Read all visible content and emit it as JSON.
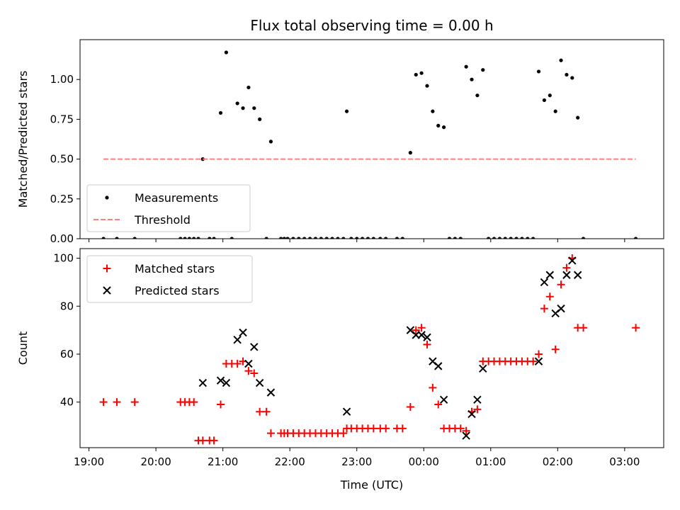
{
  "chart_data": [
    {
      "type": "scatter",
      "title": "Flux total observing time = 0.00 h",
      "xlabel": "",
      "ylabel": "Matched/Predicted stars",
      "xlim": [
        "18:52",
        "03:35"
      ],
      "ylim": [
        0.0,
        1.25
      ],
      "yticks": [
        "0.00",
        "0.25",
        "0.50",
        "0.75",
        "1.00"
      ],
      "xticks": [
        "19:00",
        "20:00",
        "21:00",
        "22:00",
        "23:00",
        "00:00",
        "01:00",
        "02:00",
        "03:00"
      ],
      "show_xtick_labels": false,
      "legend_position": "lower-left",
      "series": [
        {
          "name": "Measurements",
          "color": "#000000",
          "marker": "dot",
          "points": [
            [
              "19:13",
              0
            ],
            [
              "19:25",
              0
            ],
            [
              "19:41",
              0
            ],
            [
              "20:22",
              0
            ],
            [
              "20:26",
              0
            ],
            [
              "20:30",
              0
            ],
            [
              "20:34",
              0
            ],
            [
              "20:38",
              0
            ],
            [
              "20:42",
              0.5
            ],
            [
              "20:48",
              0
            ],
            [
              "20:52",
              0
            ],
            [
              "20:58",
              0.79
            ],
            [
              "21:03",
              1.17
            ],
            [
              "21:08",
              0
            ],
            [
              "21:13",
              0.85
            ],
            [
              "21:18",
              0.82
            ],
            [
              "21:23",
              0.95
            ],
            [
              "21:28",
              0.82
            ],
            [
              "21:33",
              0.75
            ],
            [
              "21:39",
              0
            ],
            [
              "21:43",
              0.61
            ],
            [
              "21:52",
              0
            ],
            [
              "21:55",
              0
            ],
            [
              "21:58",
              0
            ],
            [
              "22:03",
              0
            ],
            [
              "22:08",
              0
            ],
            [
              "22:13",
              0
            ],
            [
              "22:18",
              0
            ],
            [
              "22:23",
              0
            ],
            [
              "22:28",
              0
            ],
            [
              "22:33",
              0
            ],
            [
              "22:38",
              0
            ],
            [
              "22:43",
              0
            ],
            [
              "22:48",
              0
            ],
            [
              "22:51",
              0.8
            ],
            [
              "22:55",
              0
            ],
            [
              "23:00",
              0
            ],
            [
              "23:05",
              0
            ],
            [
              "23:10",
              0
            ],
            [
              "23:15",
              0
            ],
            [
              "23:21",
              0
            ],
            [
              "23:26",
              0
            ],
            [
              "23:36",
              0
            ],
            [
              "23:41",
              0
            ],
            [
              "23:48",
              0.54
            ],
            [
              "23:53",
              1.03
            ],
            [
              "23:58",
              1.04
            ],
            [
              "00:03",
              0.96
            ],
            [
              "00:08",
              0.8
            ],
            [
              "00:13",
              0.71
            ],
            [
              "00:18",
              0.7
            ],
            [
              "00:23",
              0
            ],
            [
              "00:28",
              0
            ],
            [
              "00:33",
              0
            ],
            [
              "00:38",
              1.08
            ],
            [
              "00:43",
              1.0
            ],
            [
              "00:48",
              0.9
            ],
            [
              "00:53",
              1.06
            ],
            [
              "00:58",
              0
            ],
            [
              "01:03",
              0
            ],
            [
              "01:08",
              0
            ],
            [
              "01:13",
              0
            ],
            [
              "01:18",
              0
            ],
            [
              "01:23",
              0
            ],
            [
              "01:28",
              0
            ],
            [
              "01:33",
              0
            ],
            [
              "01:38",
              0
            ],
            [
              "01:43",
              1.05
            ],
            [
              "01:48",
              0.87
            ],
            [
              "01:53",
              0.9
            ],
            [
              "01:58",
              0.8
            ],
            [
              "02:03",
              1.12
            ],
            [
              "02:08",
              1.03
            ],
            [
              "02:13",
              1.01
            ],
            [
              "02:18",
              0.76
            ],
            [
              "02:23",
              0
            ],
            [
              "03:10",
              0
            ]
          ]
        },
        {
          "name": "Threshold",
          "color": "#ff7f7f",
          "style": "dashed",
          "points": [
            [
              "19:13",
              0.5
            ],
            [
              "03:10",
              0.5
            ]
          ]
        }
      ]
    },
    {
      "type": "scatter",
      "title": "",
      "xlabel": "Time (UTC)",
      "ylabel": "Count",
      "xlim": [
        "18:52",
        "03:35"
      ],
      "ylim": [
        21,
        104
      ],
      "yticks": [
        "40",
        "60",
        "80",
        "100"
      ],
      "xticks": [
        "19:00",
        "20:00",
        "21:00",
        "22:00",
        "23:00",
        "00:00",
        "01:00",
        "02:00",
        "03:00"
      ],
      "show_xtick_labels": true,
      "legend_position": "upper-left",
      "series": [
        {
          "name": "Matched stars",
          "color": "#ff0000",
          "marker": "plus",
          "points": [
            [
              "19:13",
              40
            ],
            [
              "19:25",
              40
            ],
            [
              "19:41",
              40
            ],
            [
              "20:22",
              40
            ],
            [
              "20:26",
              40
            ],
            [
              "20:30",
              40
            ],
            [
              "20:34",
              40
            ],
            [
              "20:38",
              24
            ],
            [
              "20:42",
              24
            ],
            [
              "20:48",
              24
            ],
            [
              "20:52",
              24
            ],
            [
              "20:58",
              39
            ],
            [
              "21:03",
              56
            ],
            [
              "21:08",
              56
            ],
            [
              "21:13",
              56
            ],
            [
              "21:18",
              57
            ],
            [
              "21:23",
              53
            ],
            [
              "21:28",
              52
            ],
            [
              "21:33",
              36
            ],
            [
              "21:39",
              36
            ],
            [
              "21:43",
              27
            ],
            [
              "21:52",
              27
            ],
            [
              "21:55",
              27
            ],
            [
              "21:58",
              27
            ],
            [
              "22:03",
              27
            ],
            [
              "22:08",
              27
            ],
            [
              "22:13",
              27
            ],
            [
              "22:18",
              27
            ],
            [
              "22:23",
              27
            ],
            [
              "22:28",
              27
            ],
            [
              "22:33",
              27
            ],
            [
              "22:38",
              27
            ],
            [
              "22:43",
              27
            ],
            [
              "22:48",
              27
            ],
            [
              "22:51",
              29
            ],
            [
              "22:55",
              29
            ],
            [
              "23:00",
              29
            ],
            [
              "23:05",
              29
            ],
            [
              "23:10",
              29
            ],
            [
              "23:15",
              29
            ],
            [
              "23:21",
              29
            ],
            [
              "23:26",
              29
            ],
            [
              "23:36",
              29
            ],
            [
              "23:41",
              29
            ],
            [
              "23:48",
              38
            ],
            [
              "23:53",
              70
            ],
            [
              "23:58",
              71
            ],
            [
              "00:03",
              64
            ],
            [
              "00:08",
              46
            ],
            [
              "00:13",
              39
            ],
            [
              "00:18",
              29
            ],
            [
              "00:23",
              29
            ],
            [
              "00:28",
              29
            ],
            [
              "00:33",
              29
            ],
            [
              "00:38",
              28
            ],
            [
              "00:43",
              36
            ],
            [
              "00:48",
              37
            ],
            [
              "00:53",
              57
            ],
            [
              "00:58",
              57
            ],
            [
              "01:03",
              57
            ],
            [
              "01:08",
              57
            ],
            [
              "01:13",
              57
            ],
            [
              "01:18",
              57
            ],
            [
              "01:23",
              57
            ],
            [
              "01:28",
              57
            ],
            [
              "01:33",
              57
            ],
            [
              "01:38",
              57
            ],
            [
              "01:43",
              60
            ],
            [
              "01:48",
              79
            ],
            [
              "01:53",
              84
            ],
            [
              "01:58",
              62
            ],
            [
              "02:03",
              89
            ],
            [
              "02:08",
              96
            ],
            [
              "02:13",
              100
            ],
            [
              "02:18",
              71
            ],
            [
              "02:23",
              71
            ],
            [
              "03:10",
              71
            ]
          ]
        },
        {
          "name": "Predicted stars",
          "color": "#000000",
          "marker": "x",
          "points": [
            [
              "20:42",
              48
            ],
            [
              "20:58",
              49
            ],
            [
              "21:03",
              48
            ],
            [
              "21:13",
              66
            ],
            [
              "21:18",
              69
            ],
            [
              "21:23",
              56
            ],
            [
              "21:28",
              63
            ],
            [
              "21:33",
              48
            ],
            [
              "21:43",
              44
            ],
            [
              "22:51",
              36
            ],
            [
              "23:48",
              70
            ],
            [
              "23:53",
              68
            ],
            [
              "23:58",
              68
            ],
            [
              "00:03",
              67
            ],
            [
              "00:08",
              57
            ],
            [
              "00:13",
              55
            ],
            [
              "00:18",
              41
            ],
            [
              "00:38",
              26
            ],
            [
              "00:43",
              35
            ],
            [
              "00:48",
              41
            ],
            [
              "00:53",
              54
            ],
            [
              "01:43",
              57
            ],
            [
              "01:48",
              90
            ],
            [
              "01:53",
              93
            ],
            [
              "01:58",
              77
            ],
            [
              "02:03",
              79
            ],
            [
              "02:08",
              93
            ],
            [
              "02:13",
              99
            ],
            [
              "02:18",
              93
            ]
          ]
        }
      ]
    }
  ]
}
